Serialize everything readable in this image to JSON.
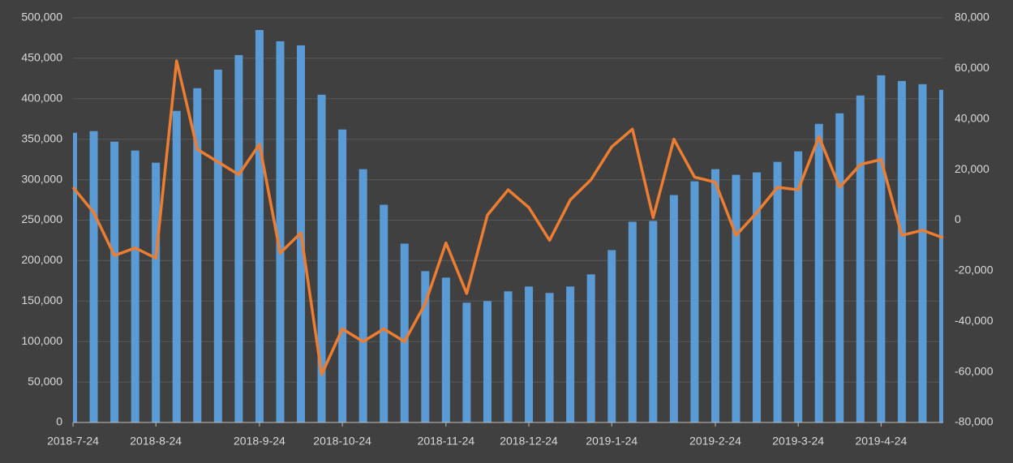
{
  "chart_data": {
    "type": "bar-line",
    "categories": [
      "2018-7-24",
      null,
      null,
      null,
      "2018-8-24",
      null,
      null,
      null,
      null,
      "2018-9-24",
      null,
      null,
      null,
      "2018-10-24",
      null,
      null,
      null,
      null,
      "2018-11-24",
      null,
      null,
      null,
      "2018-12-24",
      null,
      null,
      null,
      "2019-1-24",
      null,
      null,
      null,
      null,
      "2019-2-24",
      null,
      null,
      null,
      "2019-3-24",
      null,
      null,
      null,
      "2019-4-24",
      null,
      null,
      null
    ],
    "series": [
      {
        "color": "#5b9bd5",
        "kind": "bar",
        "axis": "y",
        "values": [
          358000,
          360000,
          347000,
          336000,
          321000,
          385000,
          413000,
          436000,
          454000,
          485000,
          471000,
          466000,
          405000,
          362000,
          313000,
          269000,
          221000,
          187000,
          179000,
          148000,
          150000,
          162000,
          168000,
          160000,
          168000,
          183000,
          213000,
          248000,
          249000,
          281000,
          298000,
          313000,
          306000,
          309000,
          322000,
          335000,
          369000,
          382000,
          404000,
          429000,
          422000,
          418000,
          411000
        ]
      },
      {
        "color": "#ed7d31",
        "kind": "line",
        "axis": "y2",
        "values": [
          13000,
          3000,
          -14000,
          -11000,
          -15000,
          63000,
          28000,
          23000,
          18000,
          30000,
          -13000,
          -5000,
          -61000,
          -43000,
          -48000,
          -43000,
          -48000,
          -33000,
          -9000,
          -29000,
          2000,
          12000,
          5000,
          -8000,
          8000,
          16000,
          29000,
          36000,
          1000,
          32000,
          17000,
          15000,
          -6000,
          3000,
          13000,
          12000,
          33000,
          13000,
          22000,
          24000,
          -6000,
          -4000,
          -7000
        ]
      }
    ],
    "ylim": [
      0,
      500000
    ],
    "yticks": [
      0,
      {
        "value": 50000,
        "label": "50,000"
      },
      {
        "value": 100000,
        "label": "100,000"
      },
      {
        "value": 150000,
        "label": "150,000"
      },
      {
        "value": 200000,
        "label": "200,000"
      },
      {
        "value": 250000,
        "label": "250,000"
      },
      {
        "value": 300000,
        "label": "300,000"
      },
      {
        "value": 350000,
        "label": "350,000"
      },
      {
        "value": 400000,
        "label": "400,000"
      },
      {
        "value": 450000,
        "label": "450,000"
      },
      {
        "value": 500000,
        "label": "500,000"
      }
    ],
    "y2lim": [
      -80000,
      80000
    ],
    "y2ticks": [
      {
        "value": -80000,
        "label": "-80,000"
      },
      {
        "value": -60000,
        "label": "-60,000"
      },
      {
        "value": -40000,
        "label": "-40,000"
      },
      {
        "value": -20000,
        "label": "-20,000"
      },
      0,
      {
        "value": 20000,
        "label": "20,000"
      },
      {
        "value": 40000,
        "label": "40,000"
      },
      {
        "value": 60000,
        "label": "60,000"
      },
      {
        "value": 80000,
        "label": "80,000"
      }
    ],
    "grid": true
  }
}
